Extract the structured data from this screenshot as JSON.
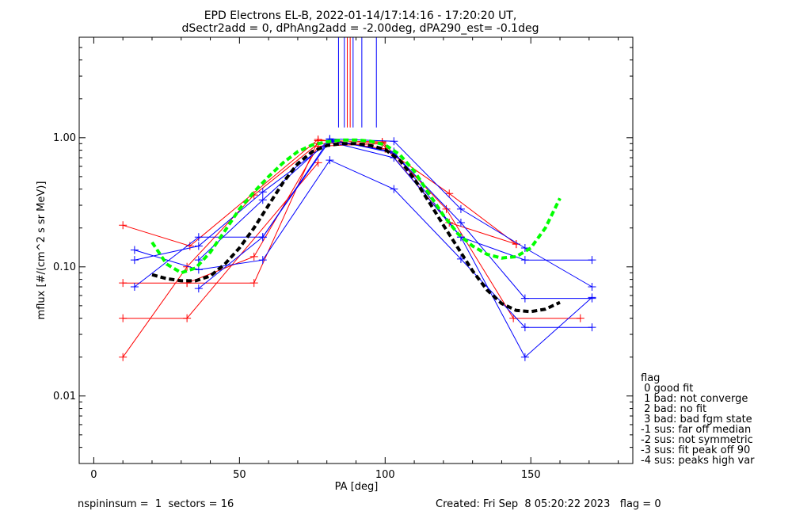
{
  "chart_data": {
    "type": "line",
    "title": "EPD Electrons EL-B, 2022-01-14/17:14:16 - 17:20:20 UT,",
    "subtitle": "dSectr2add = 0, dPhAng2add = -2.00deg, dPA290_est=  -0.1deg",
    "xlabel": "PA [deg]",
    "ylabel": "mflux [#/(cm^2 s sr MeV)]",
    "xlim": [
      -5,
      185
    ],
    "ylim": [
      0.003,
      6
    ],
    "yscale": "log",
    "xticks": [
      "0",
      "50",
      "100",
      "150"
    ],
    "yticks": [
      "0.01",
      "0.10",
      "1.00"
    ],
    "grid": false,
    "colors": {
      "red": "#ff0000",
      "blue": "#0000ff",
      "fit_black": "#000000",
      "fit_green": "#00ff00"
    },
    "series": [
      {
        "color": "red",
        "x": [
          10,
          33,
          77,
          100,
          122,
          145
        ],
        "y": [
          0.21,
          0.145,
          0.97,
          0.82,
          0.37,
          0.15
        ]
      },
      {
        "color": "red",
        "x": [
          10,
          32,
          55,
          77,
          99,
          121,
          144,
          167
        ],
        "y": [
          0.075,
          0.075,
          0.075,
          0.95,
          0.93,
          0.28,
          0.04,
          0.04
        ]
      },
      {
        "color": "red",
        "x": [
          10,
          32,
          77
        ],
        "y": [
          0.04,
          0.04,
          0.64
        ]
      },
      {
        "color": "red",
        "x": [
          10,
          32,
          55,
          77,
          99
        ],
        "y": [
          0.02,
          0.1,
          0.36,
          0.9,
          0.92
        ]
      },
      {
        "color": "red",
        "x": [
          32,
          55,
          77,
          99,
          122,
          145
        ],
        "y": [
          0.075,
          0.12,
          0.86,
          0.9,
          0.22,
          0.15
        ]
      },
      {
        "color": "blue",
        "x": [
          14,
          36,
          58,
          81,
          103,
          126,
          148,
          171
        ],
        "y": [
          0.07,
          0.17,
          0.17,
          0.98,
          0.94,
          0.28,
          0.14,
          0.07
        ]
      },
      {
        "color": "blue",
        "x": [
          14,
          36,
          58,
          81,
          103,
          126,
          148,
          171
        ],
        "y": [
          0.135,
          0.095,
          0.113,
          0.67,
          0.4,
          0.115,
          0.034,
          0.034
        ]
      },
      {
        "color": "blue",
        "x": [
          14,
          36,
          58,
          81,
          103,
          126,
          148,
          171
        ],
        "y": [
          0.113,
          0.145,
          0.38,
          0.93,
          0.7,
          0.17,
          0.113,
          0.113
        ]
      },
      {
        "color": "blue",
        "x": [
          36,
          58,
          81,
          103,
          126,
          148,
          171
        ],
        "y": [
          0.068,
          0.17,
          0.95,
          0.78,
          0.17,
          0.02,
          0.058
        ]
      },
      {
        "color": "blue",
        "x": [
          36,
          58,
          81,
          103,
          126,
          148,
          171
        ],
        "y": [
          0.113,
          0.33,
          0.97,
          0.76,
          0.22,
          0.057,
          0.057
        ]
      }
    ],
    "fits": [
      {
        "color": "fit_black",
        "x": [
          20,
          25,
          30,
          35,
          40,
          45,
          50,
          55,
          60,
          65,
          70,
          75,
          80,
          85,
          90,
          95,
          100,
          105,
          110,
          115,
          120,
          125,
          130,
          135,
          140,
          145,
          150,
          155,
          160
        ],
        "y": [
          0.087,
          0.081,
          0.078,
          0.078,
          0.085,
          0.105,
          0.14,
          0.2,
          0.3,
          0.45,
          0.63,
          0.78,
          0.87,
          0.9,
          0.9,
          0.87,
          0.81,
          0.67,
          0.48,
          0.32,
          0.21,
          0.14,
          0.093,
          0.066,
          0.052,
          0.046,
          0.045,
          0.047,
          0.053
        ]
      },
      {
        "color": "fit_green",
        "x": [
          20,
          25,
          30,
          35,
          40,
          45,
          50,
          55,
          60,
          65,
          70,
          75,
          80,
          85,
          90,
          95,
          100,
          105,
          110,
          115,
          120,
          125,
          130,
          135,
          140,
          145,
          150,
          155,
          160
        ],
        "y": [
          0.155,
          0.105,
          0.09,
          0.098,
          0.13,
          0.19,
          0.28,
          0.38,
          0.5,
          0.64,
          0.78,
          0.88,
          0.93,
          0.96,
          0.96,
          0.94,
          0.88,
          0.74,
          0.55,
          0.37,
          0.25,
          0.18,
          0.145,
          0.125,
          0.117,
          0.12,
          0.14,
          0.2,
          0.34
        ]
      }
    ],
    "peak_marks": [
      {
        "color": "blue",
        "x": 84
      },
      {
        "color": "blue",
        "x": 86
      },
      {
        "color": "red",
        "x": 87
      },
      {
        "color": "red",
        "x": 88
      },
      {
        "color": "blue",
        "x": 89
      },
      {
        "color": "blue",
        "x": 92
      },
      {
        "color": "blue",
        "x": 97
      }
    ],
    "legend": {
      "title": "flag",
      "entries": [
        " 0 good fit",
        " 1 bad: not converge",
        " 2 bad: no fit",
        " 3 bad: bad fgm state",
        "-1 sus: far off median",
        "-2 sus: not symmetric",
        "-3 sus: fit peak off 90",
        "-4 sus: peaks high var"
      ]
    }
  },
  "footer": {
    "left": "nspininsum =  1  sectors = 16",
    "right": "Created: Fri Sep  8 05:20:22 2023   flag = 0"
  }
}
